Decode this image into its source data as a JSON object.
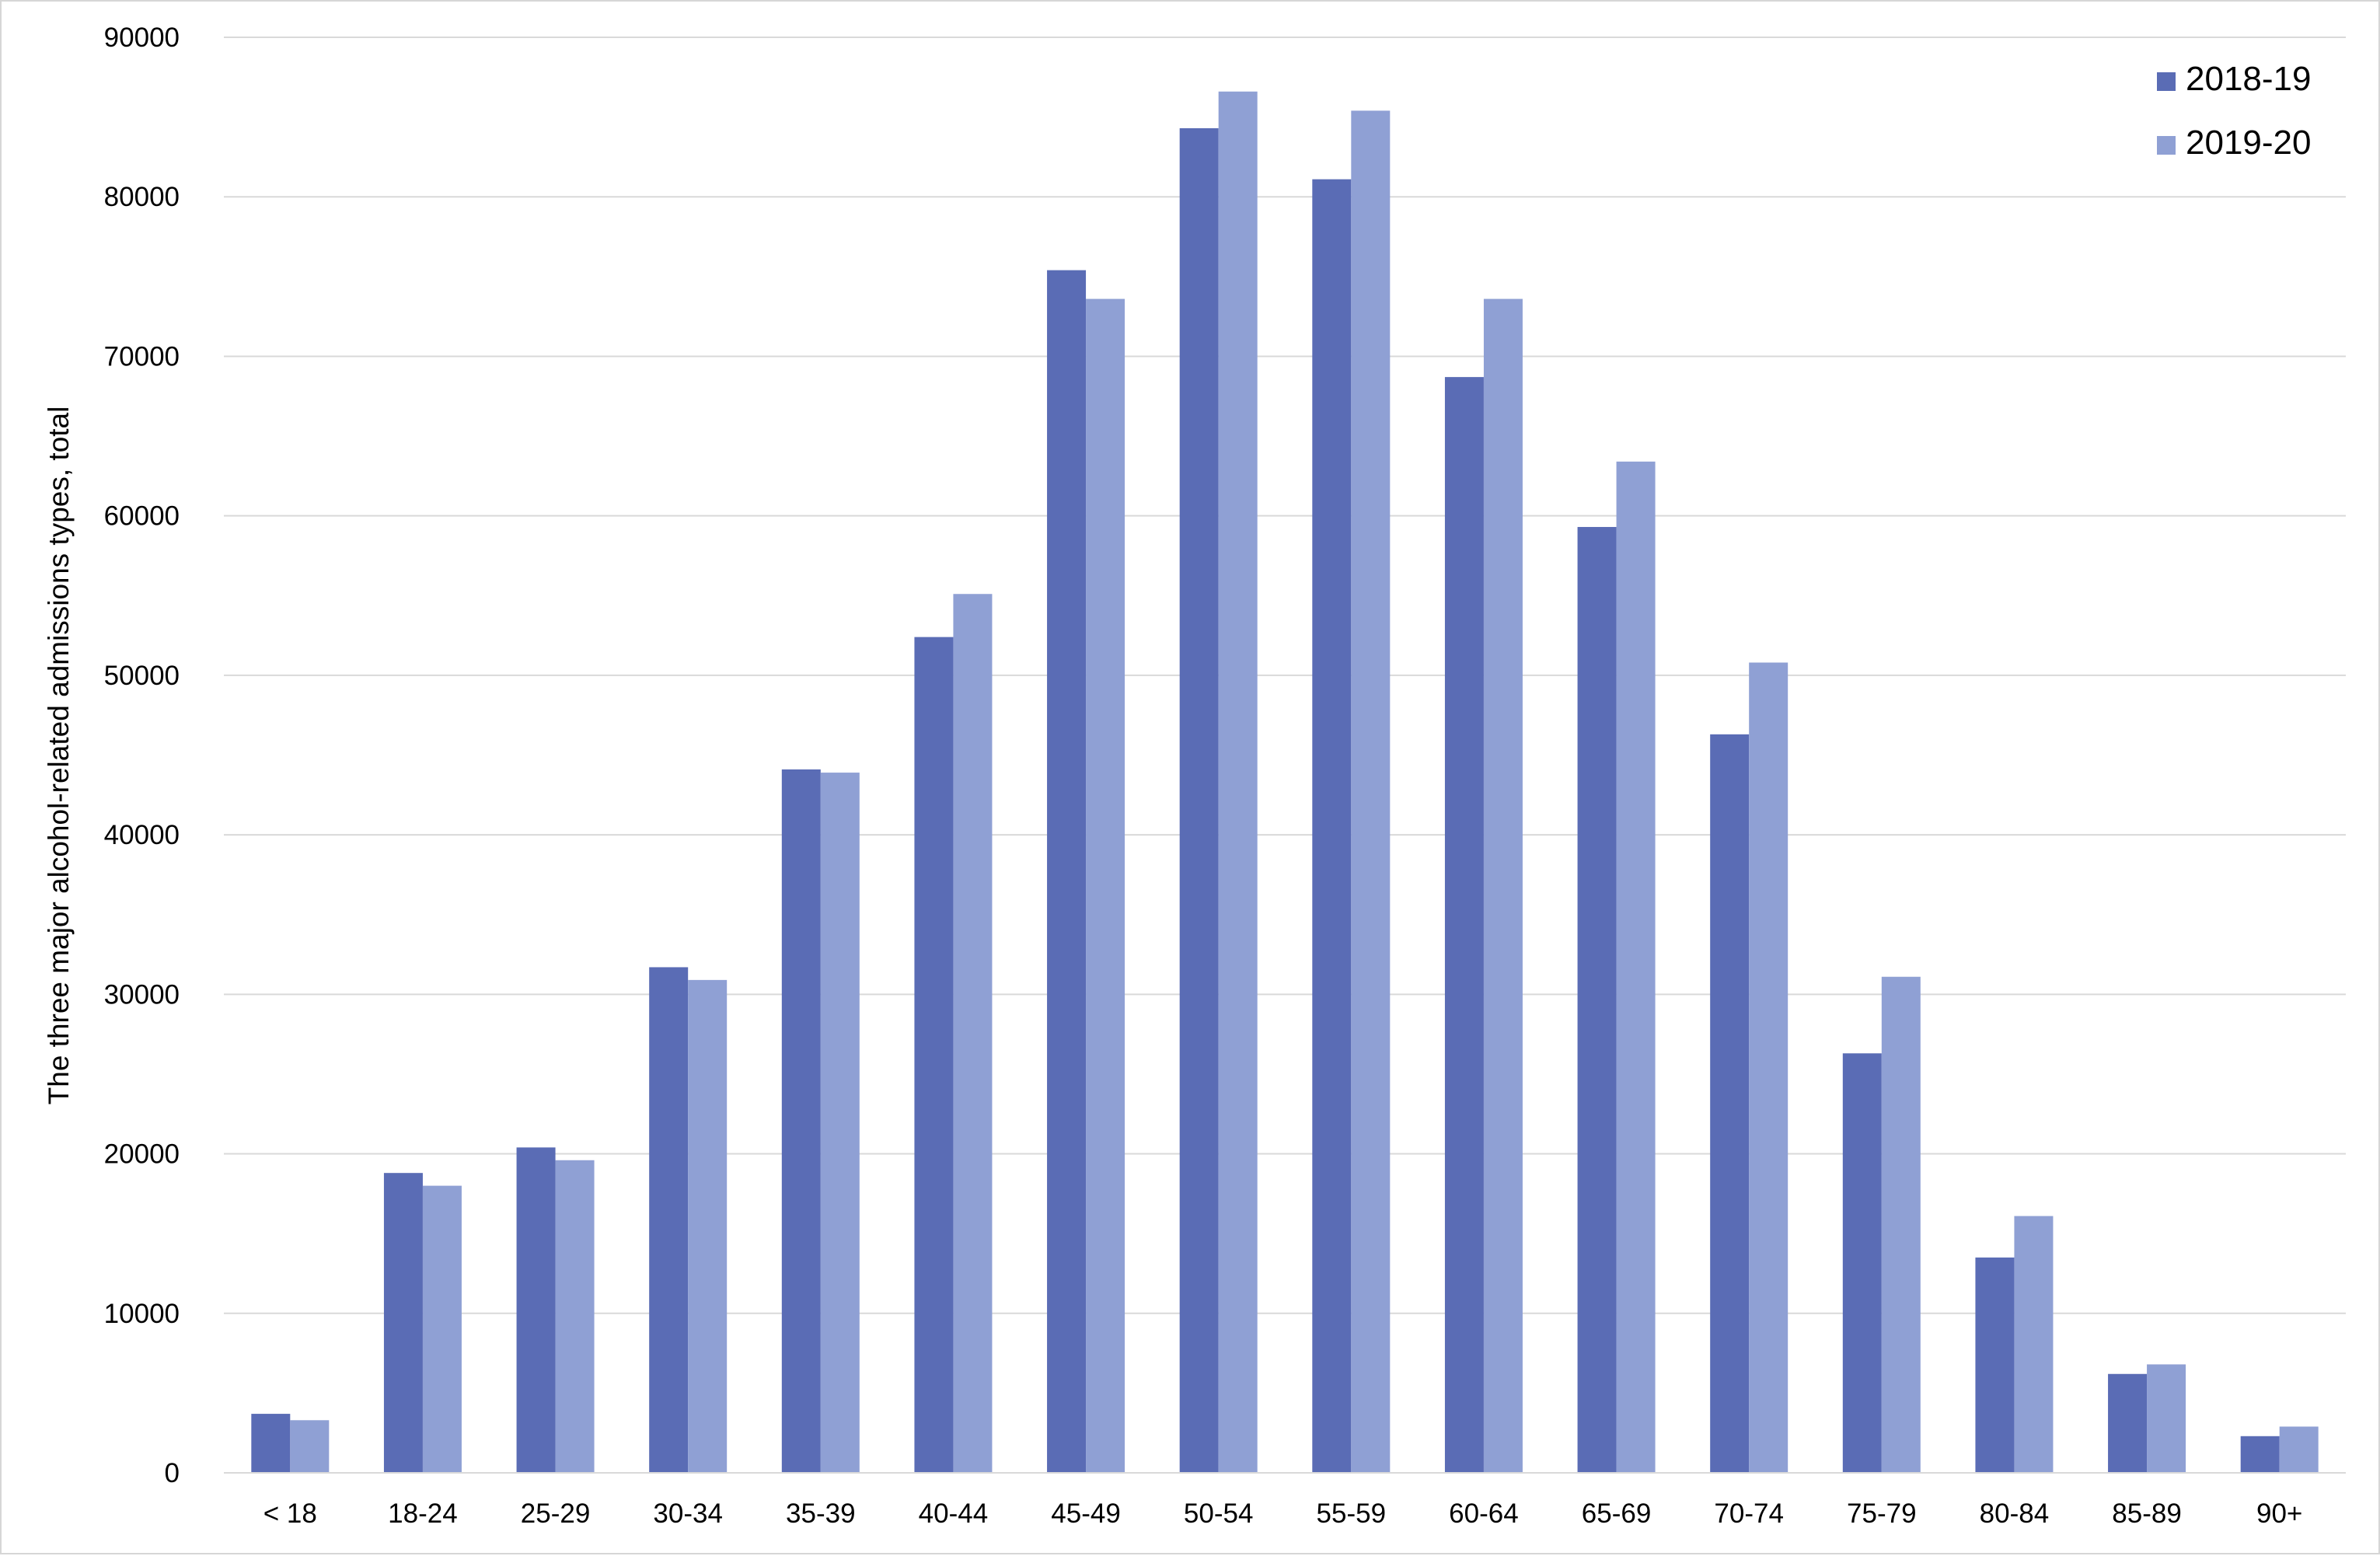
{
  "chart_data": {
    "type": "bar",
    "title": "",
    "xlabel": "",
    "ylabel": "The three major alcohol-related admissions types, total",
    "categories": [
      "< 18",
      "18-24",
      "25-29",
      "30-34",
      "35-39",
      "40-44",
      "45-49",
      "50-54",
      "55-59",
      "60-64",
      "65-69",
      "70-74",
      "75-79",
      "80-84",
      "85-89",
      "90+"
    ],
    "series": [
      {
        "name": "2018-19",
        "color": "#5a6cb5",
        "values": [
          3700,
          18800,
          20400,
          31700,
          44100,
          52400,
          75400,
          84300,
          81100,
          68700,
          59300,
          46300,
          26300,
          13500,
          6200,
          2300
        ]
      },
      {
        "name": "2019-20",
        "color": "#8fa0d4",
        "values": [
          3300,
          18000,
          19600,
          30900,
          43900,
          55100,
          73600,
          86600,
          85400,
          73600,
          63400,
          50800,
          31100,
          16100,
          6800,
          2900
        ]
      }
    ],
    "yticks": [
      0,
      10000,
      20000,
      30000,
      40000,
      50000,
      60000,
      70000,
      80000,
      90000
    ],
    "ylim": [
      0,
      90000
    ],
    "grid": true,
    "legend": "top-right"
  }
}
